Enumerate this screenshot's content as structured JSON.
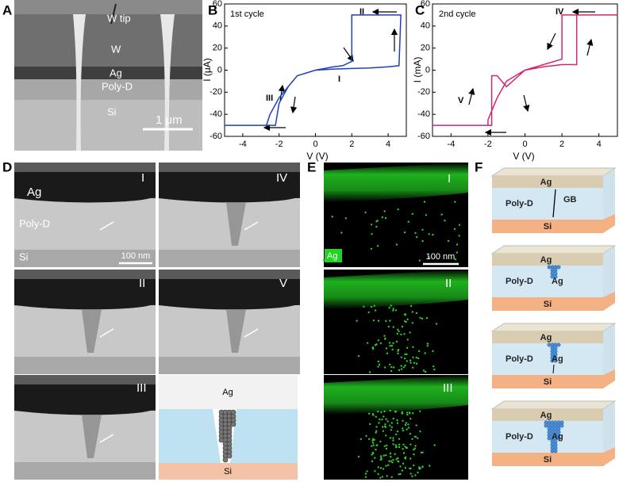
{
  "panel_a": {
    "letter": "A",
    "labels": [
      "W tip",
      "W",
      "Ag",
      "Poly-D",
      "Si"
    ],
    "scale_bar": "1 μm"
  },
  "chart_data": [
    {
      "type": "line",
      "letter": "B",
      "title": "1st cycle",
      "xlabel": "V (V)",
      "ylabel": "I (μA)",
      "x": [
        0,
        1,
        2,
        3,
        4,
        4.6,
        4.7,
        2,
        2,
        1.5,
        1,
        0,
        -1,
        -1.5,
        -2,
        -2.5,
        -2.7,
        -5,
        -2.2,
        -2,
        -1.5,
        -1,
        0
      ],
      "values": [
        0,
        1,
        1.5,
        2,
        3,
        4,
        50,
        50,
        8,
        4,
        3,
        0,
        -5,
        -15,
        -25,
        -40,
        -50,
        -50,
        -50,
        -30,
        -15,
        -5,
        0
      ],
      "color": "#1f3fbf",
      "xlim": [
        -5,
        5
      ],
      "ylim": [
        -60,
        60
      ],
      "xticks": [
        -4,
        -2,
        0,
        2,
        4
      ],
      "yticks": [
        -60,
        -40,
        -20,
        0,
        20,
        40,
        60
      ],
      "annotations": [
        "II",
        "I",
        "III"
      ]
    },
    {
      "type": "line",
      "letter": "C",
      "title": "2nd cycle",
      "xlabel": "V (V)",
      "ylabel": "I (mA)",
      "x": [
        0,
        1,
        2,
        2.8,
        2.8,
        5,
        2,
        2,
        1,
        0,
        -1,
        -1.5,
        -2,
        -2,
        -5,
        -1.8,
        -1.8,
        -1.5,
        -1,
        0
      ],
      "values": [
        0,
        3,
        5,
        5,
        50,
        50,
        50,
        10,
        5,
        0,
        -10,
        -25,
        -45,
        -50,
        -50,
        -50,
        -5,
        -5,
        -15,
        0
      ],
      "color": "#d6246e",
      "xlim": [
        -5,
        5
      ],
      "ylim": [
        -60,
        60
      ],
      "xticks": [
        -4,
        -2,
        0,
        2,
        4
      ],
      "yticks": [
        -60,
        -40,
        -20,
        0,
        20,
        40,
        60
      ],
      "annotations": [
        "IV",
        "V"
      ]
    }
  ],
  "panel_d": {
    "letter": "D",
    "labels": [
      "Ag",
      "Poly-D",
      "Si"
    ],
    "scale_bar": "100 nm",
    "stages": [
      "I",
      "IV",
      "II",
      "V",
      "III"
    ],
    "schematic": [
      "Ag",
      "Si"
    ]
  },
  "panel_e": {
    "letter": "E",
    "stages": [
      "I",
      "II",
      "III"
    ],
    "element": "Ag",
    "scale_bar": "100 nm"
  },
  "panel_f": {
    "letter": "F",
    "layers": [
      {
        "top": "Ag",
        "middle": "Poly-D",
        "feature": "GB",
        "bottom": "Si"
      },
      {
        "top": "Ag",
        "middle": "Poly-D",
        "feature": "Ag",
        "bottom": "Si"
      },
      {
        "top": "Ag",
        "middle": "Poly-D",
        "feature": "Ag",
        "bottom": "Si"
      },
      {
        "top": "Ag",
        "middle": "Poly-D",
        "feature": "Ag",
        "bottom": "Si"
      }
    ]
  }
}
